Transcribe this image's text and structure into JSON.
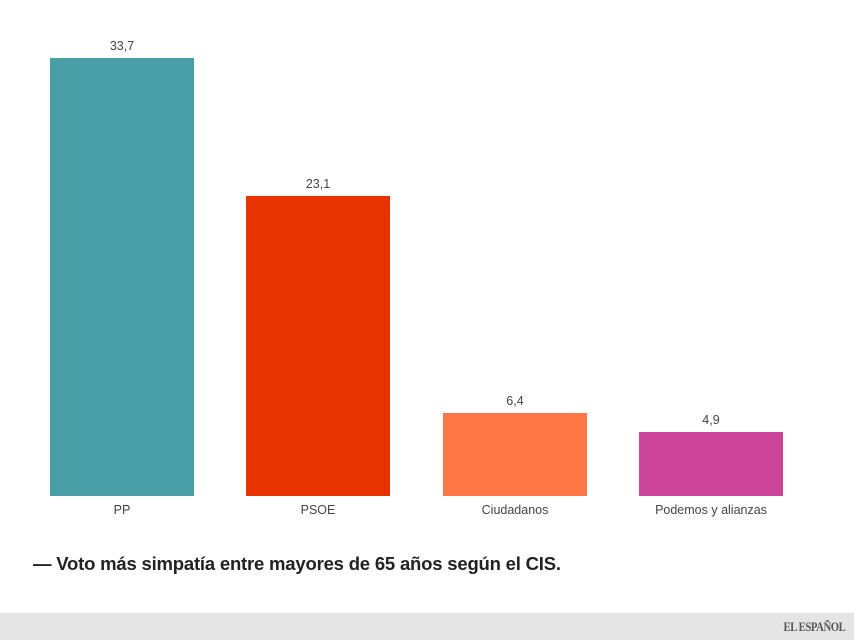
{
  "chart_data": {
    "type": "bar",
    "title": "",
    "xlabel": "",
    "ylabel": "",
    "categories": [
      "PP",
      "PSOE",
      "Ciudadanos",
      "Podemos y alianzas"
    ],
    "values": [
      33.7,
      23.1,
      6.4,
      4.9
    ],
    "value_labels": [
      "33,7",
      "23,1",
      "6,4",
      "4,9"
    ],
    "colors": [
      "#4a9ea8",
      "#e63300",
      "#ff7744",
      "#cc4499"
    ],
    "ylim": [
      0,
      33.7
    ],
    "grid": false,
    "legend": "none"
  },
  "caption": "— Voto más simpatía entre mayores de 65 años según el CIS.",
  "footer": {
    "brand": "EL ESPAÑOL"
  }
}
